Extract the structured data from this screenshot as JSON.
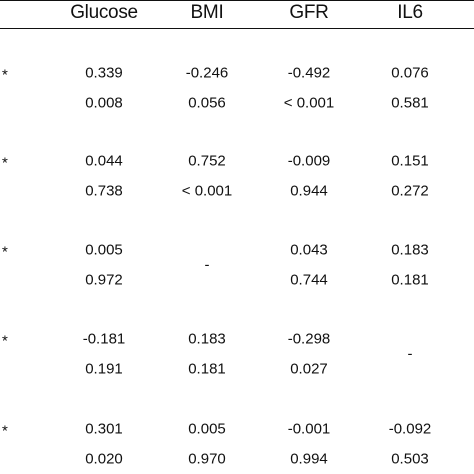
{
  "table": {
    "headers": [
      "Glucose",
      "BMI",
      "GFR",
      "IL6"
    ],
    "rows": [
      {
        "marker": "*",
        "values": [
          [
            "0.339",
            "0.008"
          ],
          [
            "-0.246",
            "0.056"
          ],
          [
            "-0.492",
            "< 0.001"
          ],
          [
            "0.076",
            "0.581"
          ]
        ]
      },
      {
        "marker": "*",
        "values": [
          [
            "0.044",
            "0.738"
          ],
          [
            "0.752",
            "< 0.001"
          ],
          [
            "-0.009",
            "0.944"
          ],
          [
            "0.151",
            "0.272"
          ]
        ]
      },
      {
        "marker": "*",
        "values": [
          [
            "0.005",
            "0.972"
          ],
          [
            "-"
          ],
          [
            "0.043",
            "0.744"
          ],
          [
            "0.183",
            "0.181"
          ]
        ]
      },
      {
        "marker": "*",
        "values": [
          [
            "-0.181",
            "0.191"
          ],
          [
            "0.183",
            "0.181"
          ],
          [
            "-0.298",
            "0.027"
          ],
          [
            "-"
          ]
        ]
      },
      {
        "marker": "*",
        "values": [
          [
            "0.301",
            "0.020"
          ],
          [
            "0.005",
            "0.970"
          ],
          [
            "-0.001",
            "0.994"
          ],
          [
            "-0.092",
            "0.503"
          ]
        ]
      }
    ]
  }
}
